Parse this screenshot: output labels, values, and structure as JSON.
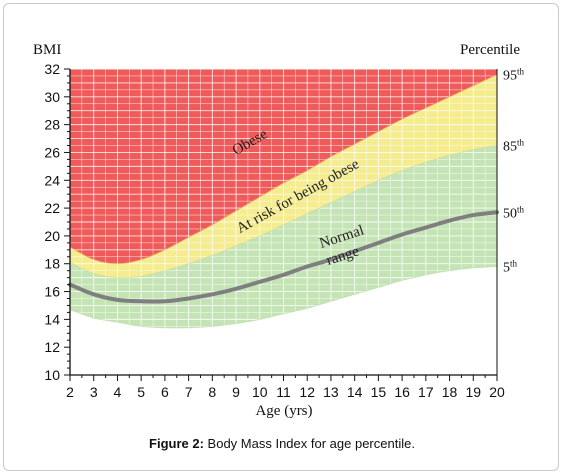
{
  "caption": {
    "label": "Figure 2:",
    "text": " Body Mass Index for age percentile."
  },
  "chart_data": {
    "type": "area",
    "ylabel": "BMI",
    "xlabel": "Age (yrs)",
    "right_axis_label": "Percentile",
    "xlim": [
      2,
      20
    ],
    "ylim": [
      10,
      32
    ],
    "x_ticks": [
      2,
      3,
      4,
      5,
      6,
      7,
      8,
      9,
      10,
      11,
      12,
      13,
      14,
      15,
      16,
      17,
      18,
      19,
      20
    ],
    "y_ticks": [
      10,
      12,
      14,
      16,
      18,
      20,
      22,
      24,
      26,
      28,
      30,
      32
    ],
    "grid": true,
    "x": [
      2,
      3,
      4,
      5,
      6,
      7,
      8,
      9,
      10,
      11,
      12,
      13,
      14,
      15,
      16,
      17,
      18,
      19,
      20
    ],
    "percentiles": [
      {
        "label": "95th",
        "base": "95",
        "sup": "th",
        "values": [
          19.2,
          18.3,
          18.0,
          18.3,
          19.0,
          19.9,
          20.8,
          21.8,
          22.8,
          23.8,
          24.7,
          25.7,
          26.6,
          27.5,
          28.4,
          29.2,
          30.0,
          30.8,
          31.6
        ]
      },
      {
        "label": "85th",
        "base": "85",
        "sup": "th",
        "values": [
          18.1,
          17.3,
          17.0,
          17.1,
          17.5,
          18.0,
          18.6,
          19.3,
          20.0,
          20.8,
          21.6,
          22.4,
          23.2,
          24.0,
          24.7,
          25.3,
          25.8,
          26.2,
          26.5
        ]
      },
      {
        "label": "50th",
        "base": "50",
        "sup": "th",
        "values": [
          16.5,
          15.8,
          15.4,
          15.3,
          15.3,
          15.5,
          15.8,
          16.2,
          16.7,
          17.2,
          17.8,
          18.3,
          18.9,
          19.5,
          20.1,
          20.6,
          21.1,
          21.5,
          21.7
        ]
      },
      {
        "label": "5th",
        "base": "5",
        "sup": "th",
        "values": [
          14.7,
          14.1,
          13.8,
          13.5,
          13.4,
          13.4,
          13.5,
          13.7,
          14.0,
          14.4,
          14.8,
          15.3,
          15.8,
          16.3,
          16.8,
          17.2,
          17.5,
          17.7,
          17.8
        ]
      }
    ],
    "zones": [
      {
        "name": "Obese",
        "color": "#ef5b5b",
        "range": "above 95th"
      },
      {
        "name": "At risk for being obese",
        "color": "#f4ec8e",
        "range": "85th to 95th"
      },
      {
        "name": "Normal range",
        "color": "#c5e4b6",
        "range": "5th to 85th"
      }
    ],
    "annotations": {
      "obese": "Obese",
      "at_risk": "At risk for being obese",
      "normal_line1": "Normal",
      "normal_line2": "range"
    },
    "colors": {
      "obese": "#ef5b5b",
      "at_risk": "#f4ec8e",
      "normal": "#c5e4b6",
      "median_line": "#7f7f7f",
      "grid": "#ffffff"
    }
  }
}
